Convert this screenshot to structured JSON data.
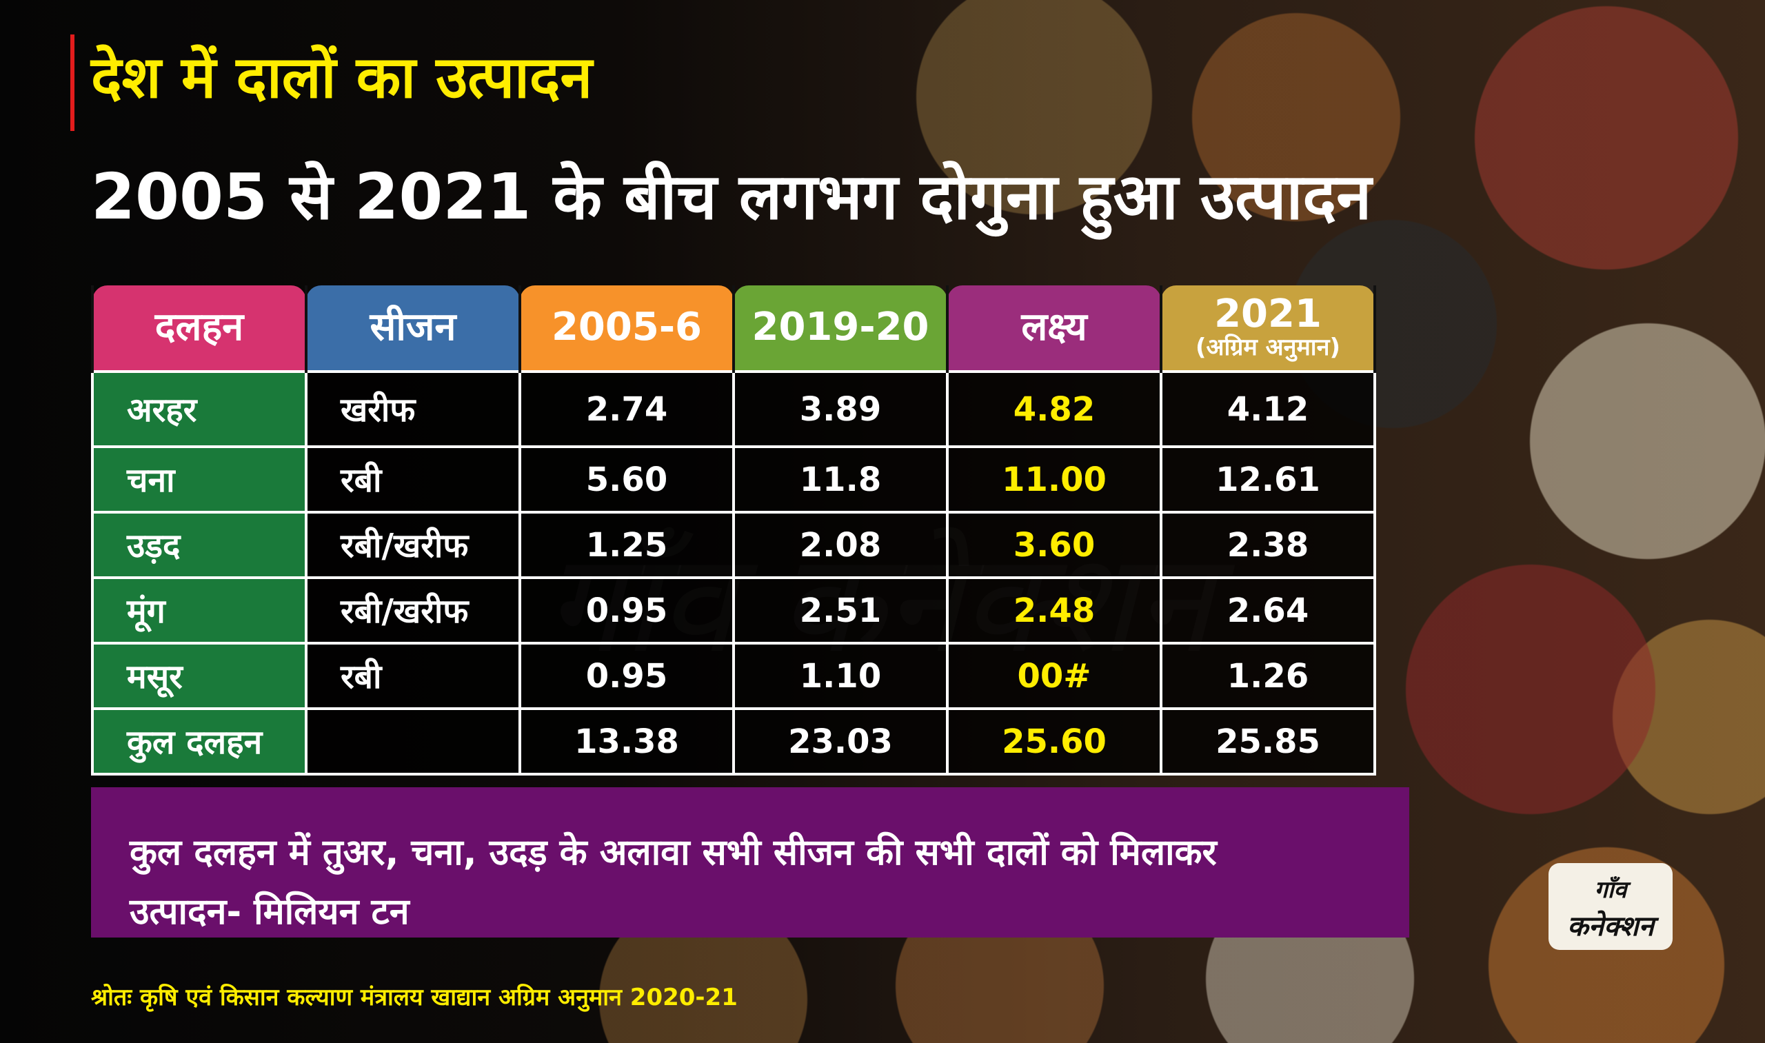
{
  "title": "देश में दालों का उत्पादन",
  "subtitle": "2005 से 2021 के बीच लगभग दोगुना हुआ उत्पादन",
  "watermark": "गाँव कनेक्शन",
  "colors": {
    "title": "#ffed00",
    "accent_bar": "#e21c1c",
    "header_pulse": "#d6336f",
    "header_season": "#3b6ea8",
    "header_2005": "#f7922a",
    "header_2019": "#6aa535",
    "header_target": "#9b2d7c",
    "header_2021": "#c8a23e",
    "name_cell": "#1a7a3a",
    "target_text": "#ffed00",
    "note_bg": "#6a0f6b"
  },
  "chart_data": {
    "type": "table",
    "columns": [
      {
        "label": "दलहन",
        "sub": ""
      },
      {
        "label": "सीजन",
        "sub": ""
      },
      {
        "label": "2005-6",
        "sub": ""
      },
      {
        "label": "2019-20",
        "sub": ""
      },
      {
        "label": "लक्ष्य",
        "sub": ""
      },
      {
        "label": "2021",
        "sub": "(अग्रिम अनुमान)"
      }
    ],
    "rows": [
      {
        "pulse": "अरहर",
        "season": "खरीफ",
        "y2005": "2.74",
        "y2019": "3.89",
        "target": "4.82",
        "y2021": "4.12"
      },
      {
        "pulse": "चना",
        "season": "रबी",
        "y2005": "5.60",
        "y2019": "11.8",
        "target": "11.00",
        "y2021": "12.61"
      },
      {
        "pulse": "उड़द",
        "season": "रबी/खरीफ",
        "y2005": "1.25",
        "y2019": "2.08",
        "target": "3.60",
        "y2021": "2.38"
      },
      {
        "pulse": "मूंग",
        "season": "रबी/खरीफ",
        "y2005": "0.95",
        "y2019": "2.51",
        "target": "2.48",
        "y2021": "2.64"
      },
      {
        "pulse": "मसूर",
        "season": "रबी",
        "y2005": "0.95",
        "y2019": "1.10",
        "target": "00#",
        "y2021": "1.26"
      },
      {
        "pulse": "कुल दलहन",
        "season": "",
        "y2005": "13.38",
        "y2019": "23.03",
        "target": "25.60",
        "y2021": "25.85"
      }
    ]
  },
  "note": {
    "line1": "कुल दलहन में तुअर, चना, उदड़ के अलावा सभी सीजन की सभी दालों को मिलाकर",
    "line2": "उत्पादन- मिलियन टन"
  },
  "source": "श्रोतः कृषि एवं किसान कल्याण मंत्रालय खाद्यान अग्रिम अनुमान 2020-21",
  "logo": {
    "line1": "गाँव",
    "line2": "कनेक्शन"
  }
}
